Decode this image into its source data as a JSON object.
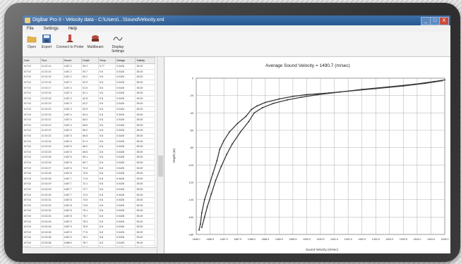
{
  "window": {
    "title": "Digibar Pro II - Velocity data - C:\\Users\\...\\SoundVelocity.xml",
    "min": "_",
    "max": "□",
    "close": "X"
  },
  "menu": [
    "File",
    "Settings",
    "Help"
  ],
  "toolbar": [
    {
      "label": "Open",
      "icon": "folder-icon",
      "color": "#e0a72d"
    },
    {
      "label": "Export",
      "icon": "save-icon",
      "color": "#2c5fa8"
    },
    {
      "label": "Connect to Probe",
      "icon": "probe-icon",
      "color": "#c0392b"
    },
    {
      "label": "Multibeam",
      "icon": "multibeam-icon",
      "color": "#b03a2e"
    },
    {
      "label": "Display Settings",
      "icon": "wave-icon",
      "color": "#555555"
    }
  ],
  "table": {
    "columns": [
      "Date",
      "Time",
      "Sound",
      "Depth",
      "Temp.",
      "Voltage",
      "Salinity"
    ],
    "rows": [
      [
        "6/7/10",
        "10:32:14",
        "1487.2",
        "59.2",
        "5.77",
        "0.0426",
        "35.00"
      ],
      [
        "6/7/10",
        "10:32:15",
        "1487.2",
        "59.7",
        "5.8",
        "0.0426",
        "35.00"
      ],
      [
        "6/7/10",
        "10:32:15",
        "1487.2",
        "60.2",
        "5.8",
        "0.0426",
        "35.00"
      ],
      [
        "6/7/10",
        "10:32:16",
        "1487.2",
        "60.9",
        "5.8",
        "0.0426",
        "35.00"
      ],
      [
        "6/7/10",
        "10:32:17",
        "1487.3",
        "61.6",
        "5.8",
        "0.0426",
        "35.00"
      ],
      [
        "6/7/10",
        "10:32:18",
        "1487.3",
        "62.1",
        "5.8",
        "0.0426",
        "35.00"
      ],
      [
        "6/7/10",
        "10:32:18",
        "1487.3",
        "62.8",
        "5.8",
        "0.0426",
        "35.00"
      ],
      [
        "6/7/10",
        "10:32:19",
        "1487.3",
        "63.2",
        "5.8",
        "0.0426",
        "35.00"
      ],
      [
        "6/7/10",
        "10:32:20",
        "1487.3",
        "63.9",
        "5.8",
        "0.0426",
        "35.00"
      ],
      [
        "6/7/10",
        "10:32:20",
        "1487.4",
        "64.4",
        "5.8",
        "0.0426",
        "35.00"
      ],
      [
        "6/7/10",
        "10:32:21",
        "1487.4",
        "65.0",
        "5.8",
        "0.0426",
        "35.00"
      ],
      [
        "6/7/10",
        "10:32:22",
        "1487.4",
        "65.6",
        "5.8",
        "0.0426",
        "35.00"
      ],
      [
        "6/7/10",
        "10:32:22",
        "1487.4",
        "66.2",
        "5.8",
        "0.0426",
        "35.00"
      ],
      [
        "6/7/10",
        "10:32:23",
        "1487.5",
        "66.8",
        "5.8",
        "0.0426",
        "35.00"
      ],
      [
        "6/7/10",
        "10:32:24",
        "1487.5",
        "67.4",
        "5.8",
        "0.0426",
        "35.00"
      ],
      [
        "6/7/10",
        "10:32:24",
        "1487.5",
        "68.0",
        "5.8",
        "0.0426",
        "35.00"
      ],
      [
        "6/7/10",
        "10:32:25",
        "1487.5",
        "68.5",
        "5.8",
        "0.0426",
        "35.00"
      ],
      [
        "6/7/10",
        "10:32:26",
        "1487.6",
        "69.1",
        "5.8",
        "0.0426",
        "35.00"
      ],
      [
        "6/7/10",
        "10:32:26",
        "1487.6",
        "69.7",
        "5.8",
        "0.0426",
        "35.00"
      ],
      [
        "6/7/10",
        "10:32:27",
        "1487.6",
        "70.3",
        "5.8",
        "0.0426",
        "35.00"
      ],
      [
        "6/7/10",
        "10:32:28",
        "1487.6",
        "70.9",
        "5.8",
        "0.0426",
        "35.00"
      ],
      [
        "6/7/10",
        "10:32:28",
        "1487.7",
        "71.5",
        "5.8",
        "0.0426",
        "35.00"
      ],
      [
        "6/7/10",
        "10:32:29",
        "1487.7",
        "72.1",
        "5.8",
        "0.0426",
        "35.00"
      ],
      [
        "6/7/10",
        "10:32:30",
        "1487.7",
        "72.7",
        "5.8",
        "0.0426",
        "35.00"
      ],
      [
        "6/7/10",
        "10:32:30",
        "1487.7",
        "73.3",
        "5.8",
        "0.0426",
        "35.00"
      ],
      [
        "6/7/10",
        "10:32:31",
        "1487.8",
        "73.9",
        "5.8",
        "0.0426",
        "35.00"
      ],
      [
        "6/7/10",
        "10:32:32",
        "1487.8",
        "74.5",
        "5.8",
        "0.0426",
        "35.00"
      ],
      [
        "6/7/10",
        "10:32:32",
        "1487.8",
        "75.1",
        "5.8",
        "0.0426",
        "35.00"
      ],
      [
        "6/7/10",
        "10:32:33",
        "1487.8",
        "75.7",
        "5.8",
        "0.0426",
        "35.00"
      ],
      [
        "6/7/10",
        "10:32:34",
        "1487.9",
        "76.3",
        "5.8",
        "0.0426",
        "35.00"
      ],
      [
        "6/7/10",
        "10:32:34",
        "1487.9",
        "76.9",
        "5.8",
        "0.0426",
        "35.00"
      ],
      [
        "6/7/10",
        "10:32:35",
        "1487.9",
        "77.5",
        "5.8",
        "0.0426",
        "35.00"
      ],
      [
        "6/7/10",
        "10:32:36",
        "1487.9",
        "78.1",
        "5.8",
        "0.0426",
        "35.00"
      ],
      [
        "6/7/10",
        "10:32:36",
        "1488.0",
        "78.7",
        "5.8",
        "0.0426",
        "35.00"
      ],
      [
        "6/7/10",
        "10:32:37",
        "1488.0",
        "79.3",
        "5.8",
        "0.0426",
        "35.00"
      ],
      [
        "6/7/10",
        "10:32:38",
        "1488.0",
        "79.9",
        "5.8",
        "0.0426",
        "35.00"
      ]
    ]
  },
  "chart_data": {
    "type": "line",
    "title": "Average Sound Velocity = 1490.7 (m/sec)",
    "xlabel": "Sound Velocity (m/sec)",
    "ylabel": "Depth (m)",
    "grid": true,
    "xticks": [
      "1486.0",
      "1486.5",
      "1487.0",
      "1487.5",
      "1488.0",
      "1488.5",
      "1489.0",
      "1489.5",
      "1490.0",
      "1490.5",
      "1491.0",
      "1491.5",
      "1492.0",
      "1492.5",
      "1493.0",
      "1493.5",
      "1494.0",
      "1494.5",
      "1495.0"
    ],
    "yticks": [
      "0",
      "-20",
      "-40",
      "-60",
      "-80",
      "-100",
      "-120",
      "-140",
      "-160",
      "-180"
    ],
    "xlim": [
      1486.0,
      1495.0
    ],
    "ylim": [
      -180,
      0
    ],
    "series": [
      {
        "x": [
          1486.1,
          1486.15,
          1486.2,
          1486.3,
          1486.45,
          1486.6,
          1486.75,
          1486.85,
          1487.0,
          1487.2,
          1487.5,
          1487.8,
          1488.0,
          1488.2,
          1488.5,
          1489.0,
          1489.5,
          1490.0,
          1490.8,
          1491.5,
          1492.5,
          1493.5,
          1494.3,
          1494.9
        ],
        "y": [
          -175,
          -168,
          -155,
          -140,
          -125,
          -110,
          -95,
          -82,
          -72,
          -62,
          -52,
          -44,
          -36,
          -32,
          -28,
          -24,
          -21,
          -19,
          -17,
          -15,
          -12,
          -9,
          -6,
          -3
        ]
      },
      {
        "x": [
          1486.2,
          1486.3,
          1486.4,
          1486.55,
          1486.7,
          1486.9,
          1487.1,
          1487.3,
          1487.6,
          1487.9,
          1488.1,
          1488.4,
          1488.8,
          1489.3,
          1489.8,
          1490.4,
          1491.2,
          1492.0,
          1493.0,
          1493.9,
          1494.6,
          1495.0
        ],
        "y": [
          -172,
          -160,
          -148,
          -133,
          -118,
          -102,
          -88,
          -76,
          -62,
          -50,
          -40,
          -34,
          -29,
          -25,
          -22,
          -19,
          -16,
          -13,
          -10,
          -7,
          -4,
          -2
        ]
      }
    ]
  }
}
